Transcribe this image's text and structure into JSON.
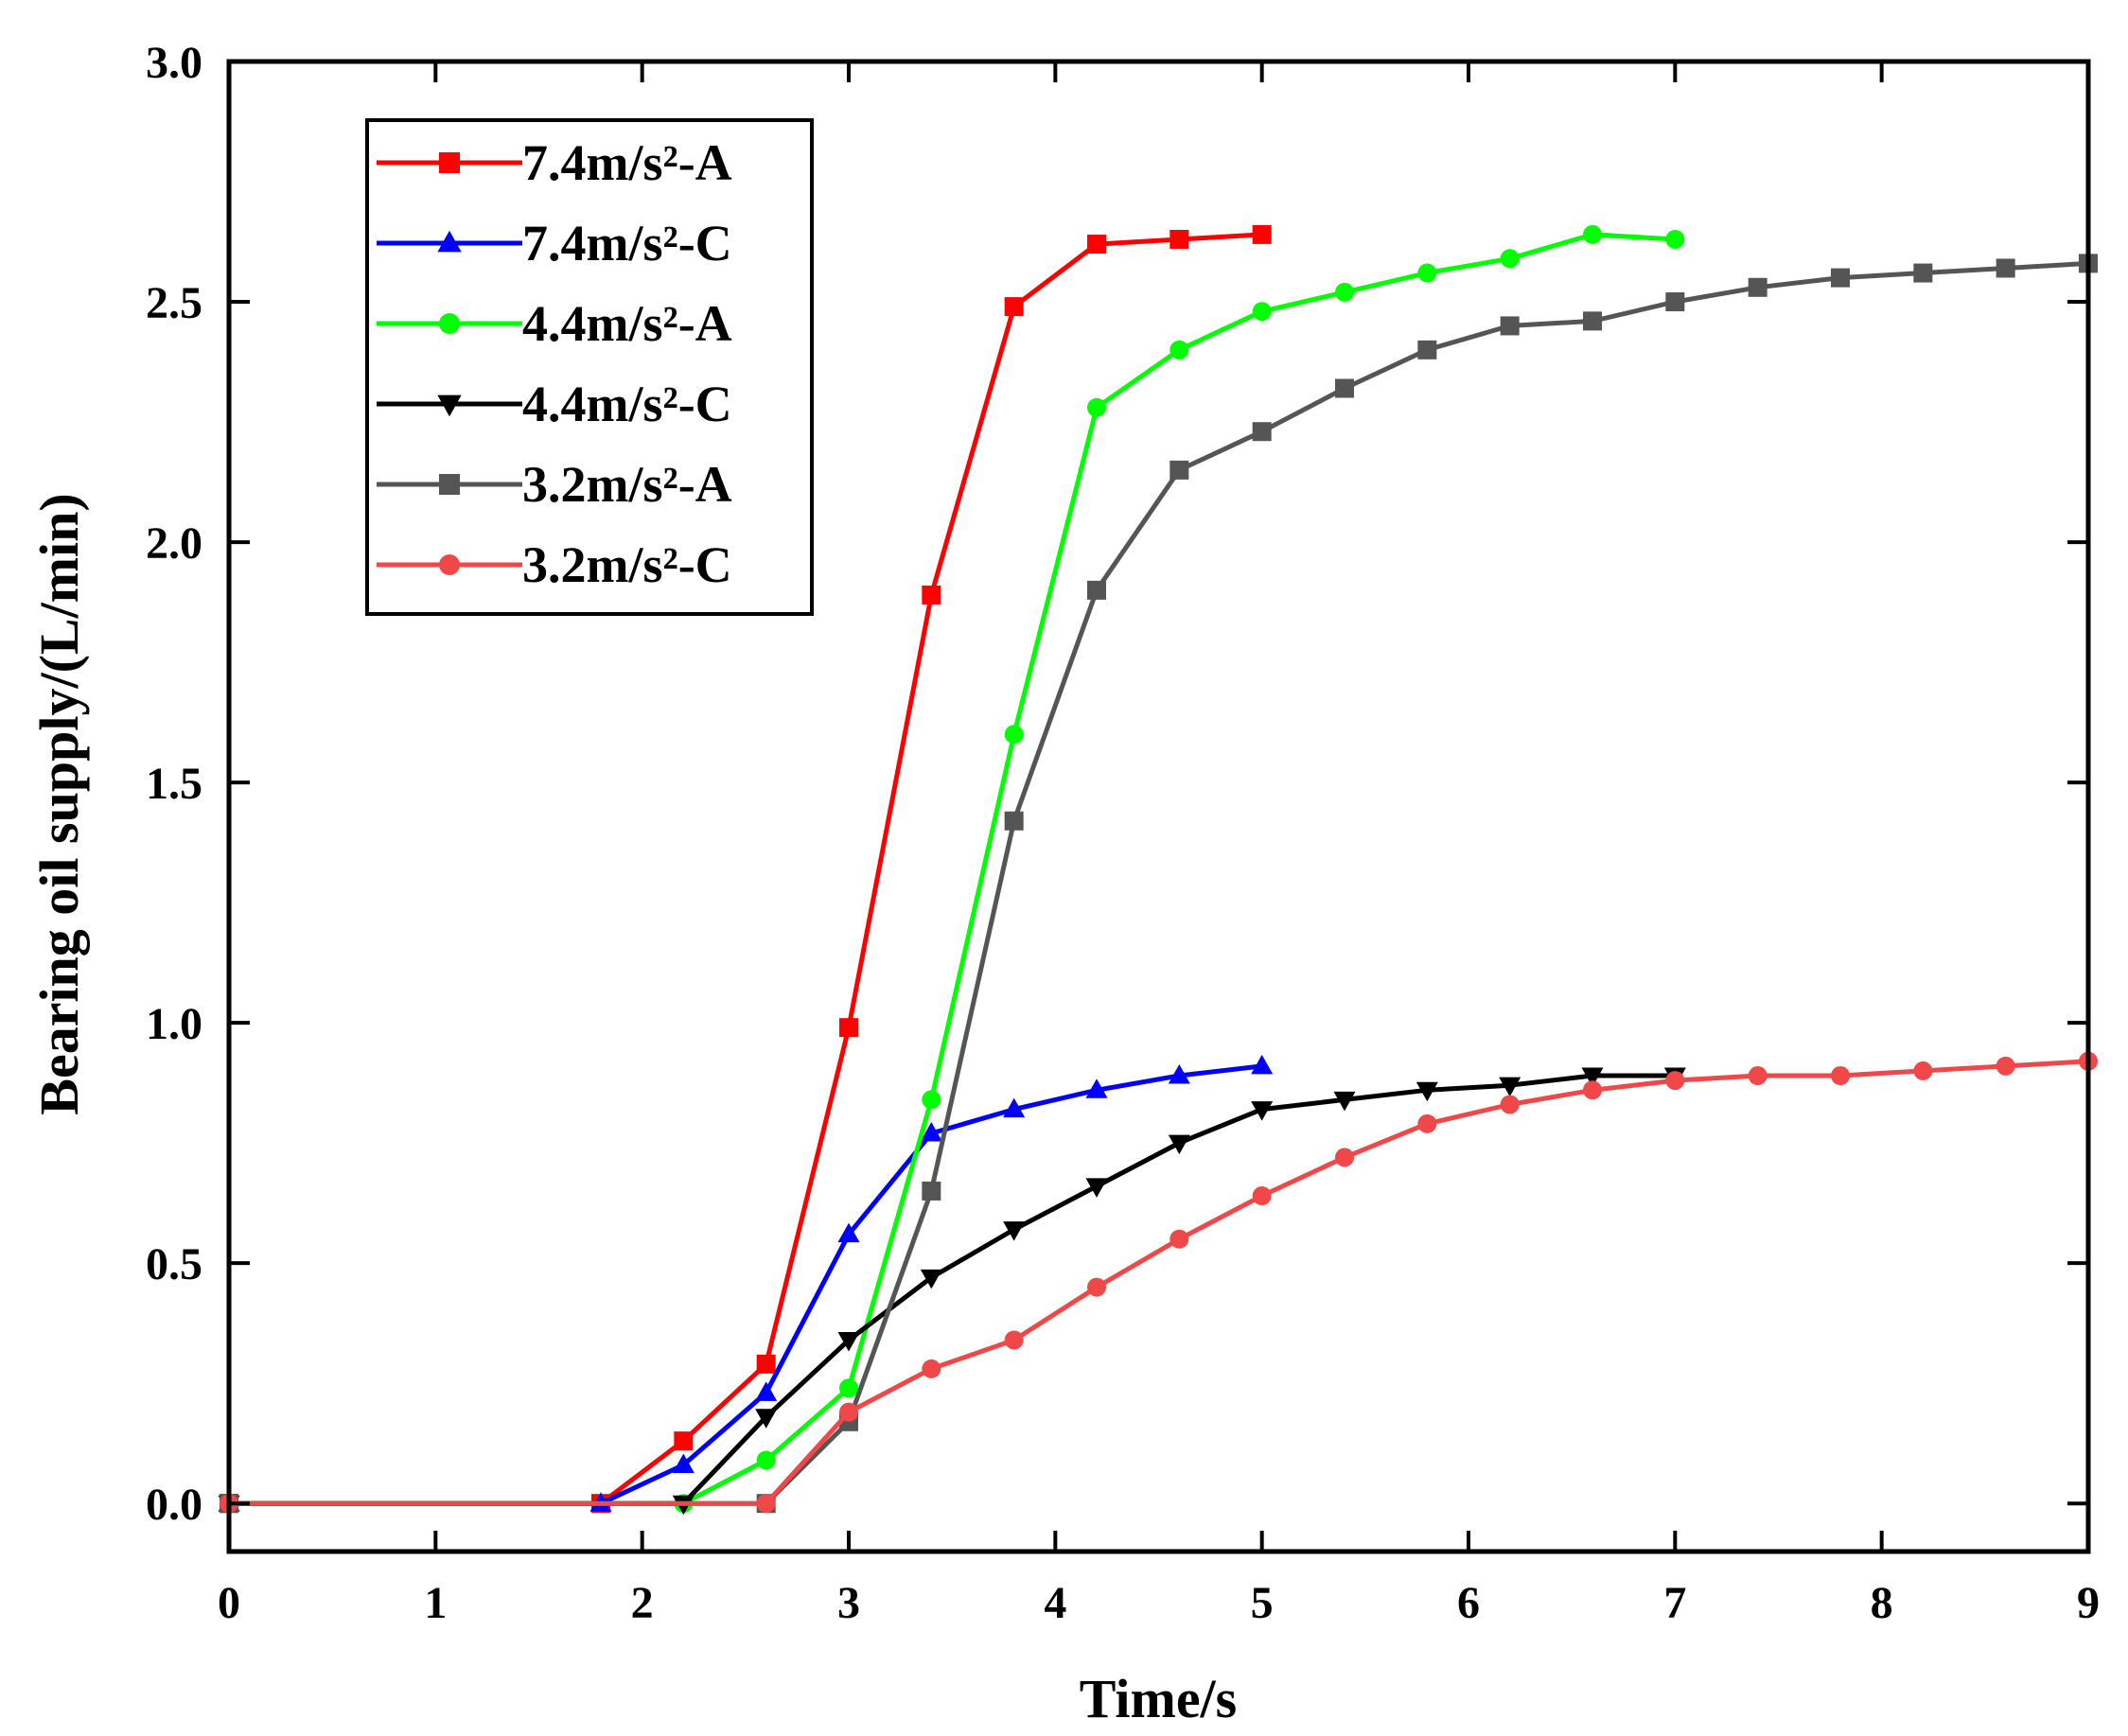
{
  "chart_data": {
    "type": "line",
    "title": "",
    "xlabel": "Time/s",
    "ylabel": "Bearing oil supply/(L/min)",
    "xlim": [
      0,
      9
    ],
    "ylim": [
      -0.1,
      3.0
    ],
    "xticks": [
      0,
      1,
      2,
      3,
      4,
      5,
      6,
      7,
      8,
      9
    ],
    "xtick_labels": [
      "0",
      "1",
      "2",
      "3",
      "4",
      "5",
      "6",
      "7",
      "8",
      "9"
    ],
    "yticks": [
      0.0,
      0.5,
      1.0,
      1.5,
      2.0,
      2.5,
      3.0
    ],
    "ytick_labels": [
      "0.0",
      "0.5",
      "1.0",
      "1.5",
      "2.0",
      "2.5",
      "3.0"
    ],
    "grid": false,
    "legend_position": "top-left",
    "series": [
      {
        "name": "7.4m/s²-A",
        "color": "#ff0000",
        "marker": "square",
        "x": [
          0,
          1.8,
          2.2,
          2.6,
          3.0,
          3.4,
          3.8,
          4.2,
          4.6,
          5.0
        ],
        "y": [
          0,
          0,
          0.13,
          0.29,
          0.99,
          1.89,
          2.49,
          2.62,
          2.63,
          2.64
        ]
      },
      {
        "name": "7.4m/s²-C",
        "color": "#0000ff",
        "marker": "triangle-up",
        "x": [
          0,
          1.8,
          2.2,
          2.6,
          3.0,
          3.4,
          3.8,
          4.2,
          4.6,
          5.0
        ],
        "y": [
          0,
          0,
          0.08,
          0.23,
          0.56,
          0.77,
          0.82,
          0.86,
          0.89,
          0.91
        ]
      },
      {
        "name": "4.4m/s²-A",
        "color": "#00ff00",
        "marker": "circle",
        "x": [
          0,
          2.2,
          2.6,
          3.0,
          3.4,
          3.8,
          4.2,
          4.6,
          5.0,
          5.4,
          5.8,
          6.2,
          6.6,
          7.0
        ],
        "y": [
          0,
          0,
          0.09,
          0.24,
          0.84,
          1.6,
          2.28,
          2.4,
          2.48,
          2.52,
          2.56,
          2.59,
          2.64,
          2.63
        ]
      },
      {
        "name": "4.4m/s²-C",
        "color": "#000000",
        "marker": "triangle-down",
        "x": [
          0,
          2.2,
          2.6,
          3.0,
          3.4,
          3.8,
          4.2,
          4.6,
          5.0,
          5.4,
          5.8,
          6.2,
          6.6,
          7.0
        ],
        "y": [
          0,
          0,
          0.18,
          0.34,
          0.47,
          0.57,
          0.66,
          0.75,
          0.82,
          0.84,
          0.86,
          0.87,
          0.89,
          0.89
        ]
      },
      {
        "name": "3.2m/s²-A",
        "color": "#555555",
        "marker": "square",
        "x": [
          0,
          2.6,
          3.0,
          3.4,
          3.8,
          4.2,
          4.6,
          5.0,
          5.4,
          5.8,
          6.2,
          6.6,
          7.0,
          7.4,
          7.8,
          8.2,
          8.6,
          9.0
        ],
        "y": [
          0,
          0,
          0.17,
          0.65,
          1.42,
          1.9,
          2.15,
          2.23,
          2.32,
          2.4,
          2.45,
          2.46,
          2.5,
          2.53,
          2.55,
          2.56,
          2.57,
          2.58
        ]
      },
      {
        "name": "3.2m/s²-C",
        "color": "#f04848",
        "marker": "circle",
        "x": [
          0,
          2.6,
          3.0,
          3.4,
          3.8,
          4.2,
          4.6,
          5.0,
          5.4,
          5.8,
          6.2,
          6.6,
          7.0,
          7.4,
          7.8,
          8.2,
          8.6,
          9.0
        ],
        "y": [
          0,
          0,
          0.19,
          0.28,
          0.34,
          0.45,
          0.55,
          0.64,
          0.72,
          0.79,
          0.83,
          0.86,
          0.88,
          0.89,
          0.89,
          0.9,
          0.91,
          0.92
        ]
      }
    ]
  }
}
